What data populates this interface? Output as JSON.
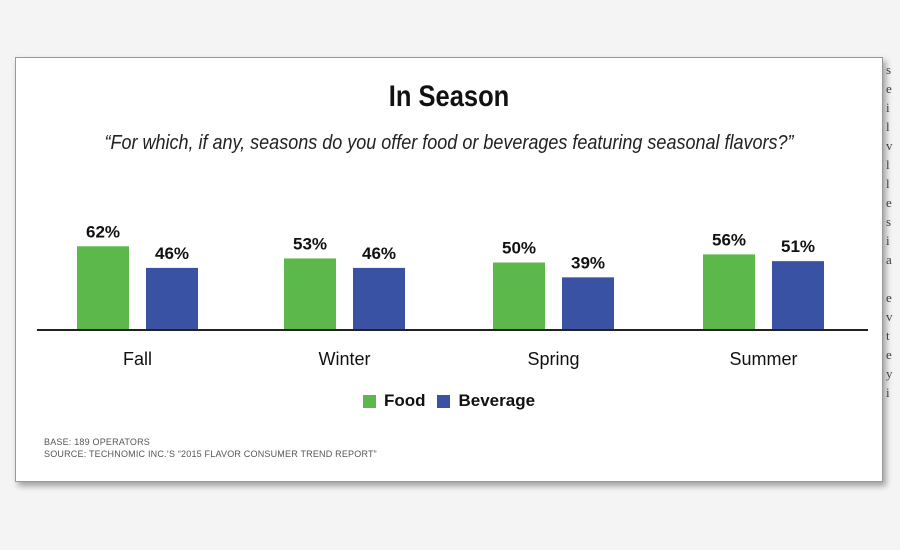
{
  "bg_text": [
    "s",
    "e",
    "i",
    "l",
    "v",
    "l",
    "l",
    "e",
    "s",
    "i",
    "a",
    "",
    "e",
    "v",
    "t",
    "e",
    "y",
    "i"
  ],
  "colors": {
    "food": "#5cb84a",
    "beverage": "#3a52a3",
    "axis": "#222222"
  },
  "chart_data": {
    "type": "bar",
    "title": "In Season",
    "subtitle": "“For which, if any, seasons do you offer food or beverages featuring seasonal flavors?”",
    "categories": [
      "Fall",
      "Winter",
      "Spring",
      "Summer"
    ],
    "series": [
      {
        "name": "Food",
        "values": [
          62,
          53,
          50,
          56
        ],
        "labels": [
          "62%",
          "53%",
          "50%",
          "56%"
        ]
      },
      {
        "name": "Beverage",
        "values": [
          46,
          46,
          39,
          51
        ],
        "labels": [
          "46%",
          "46%",
          "39%",
          "51%"
        ]
      }
    ],
    "xlabel": "",
    "ylabel": "",
    "ylim": [
      0,
      100
    ],
    "grid": false,
    "legend_position": "bottom-center"
  },
  "notes": {
    "base": "BASE: 189 OPERATORS",
    "source": "SOURCE:  TECHNOMIC INC.’S “2015 FLAVOR CONSUMER TREND REPORT”"
  }
}
